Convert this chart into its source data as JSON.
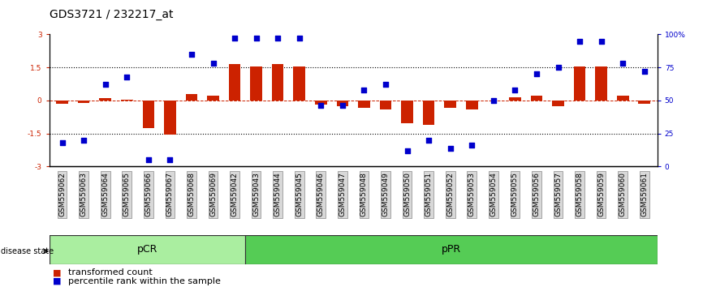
{
  "title": "GDS3721 / 232217_at",
  "samples": [
    "GSM559062",
    "GSM559063",
    "GSM559064",
    "GSM559065",
    "GSM559066",
    "GSM559067",
    "GSM559068",
    "GSM559069",
    "GSM559042",
    "GSM559043",
    "GSM559044",
    "GSM559045",
    "GSM559046",
    "GSM559047",
    "GSM559048",
    "GSM559049",
    "GSM559050",
    "GSM559051",
    "GSM559052",
    "GSM559053",
    "GSM559054",
    "GSM559055",
    "GSM559056",
    "GSM559057",
    "GSM559058",
    "GSM559059",
    "GSM559060",
    "GSM559061"
  ],
  "transformed_count": [
    -0.15,
    -0.12,
    0.1,
    0.05,
    -1.25,
    -1.55,
    0.3,
    0.22,
    1.65,
    1.55,
    1.65,
    1.55,
    -0.2,
    -0.25,
    -0.35,
    -0.4,
    -1.05,
    -1.1,
    -0.35,
    -0.4,
    0.0,
    0.15,
    0.2,
    -0.25,
    1.55,
    1.55,
    0.22,
    -0.15
  ],
  "percentile_rank": [
    18,
    20,
    62,
    68,
    5,
    5,
    85,
    78,
    97,
    97,
    97,
    97,
    46,
    46,
    58,
    62,
    12,
    20,
    14,
    16,
    50,
    58,
    70,
    75,
    95,
    95,
    78,
    72
  ],
  "pCR_count": 9,
  "pPR_count": 19,
  "bar_color": "#cc2200",
  "dot_color": "#0000cc",
  "pCR_color": "#aaeea0",
  "pPR_color": "#55cc55",
  "bg_color": "#ffffff",
  "ylim": [
    -3.0,
    3.0
  ],
  "dotted_lines": [
    1.5,
    -1.5
  ],
  "title_fontsize": 10,
  "tick_fontsize": 6.5,
  "legend_fontsize": 8
}
